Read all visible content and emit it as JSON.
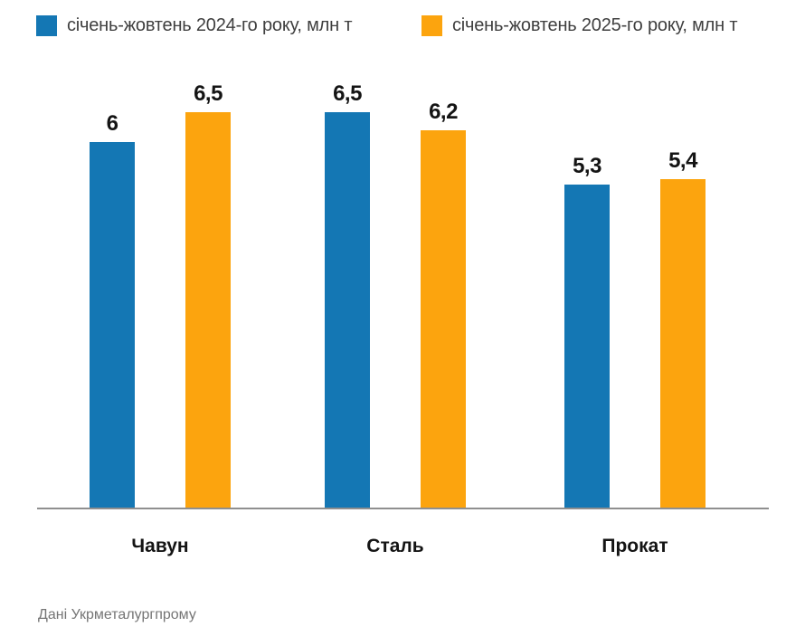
{
  "legend": [
    {
      "label": "січень-жовтень 2024-го року, млн т",
      "color": "#1477B4"
    },
    {
      "label": "січень-жовтень 2025-го року, млн т",
      "color": "#FCA40E"
    }
  ],
  "source": "Дані Укрметалургпрому",
  "chart_data": {
    "type": "bar",
    "categories": [
      "Чавун",
      "Сталь",
      "Прокат"
    ],
    "series": [
      {
        "name": "січень-жовтень 2024-го року, млн т",
        "color": "#1477B4",
        "values": [
          6,
          6.5,
          5.3
        ],
        "value_labels": [
          "6",
          "6,5",
          "5,3"
        ]
      },
      {
        "name": "січень-жовтень 2025-го року, млн т",
        "color": "#FCA40E",
        "values": [
          6.5,
          6.2,
          5.4
        ],
        "value_labels": [
          "6,5",
          "6,2",
          "5,4"
        ]
      }
    ],
    "ylim": [
      0,
      7
    ],
    "grid": false,
    "axis_line_color": "#8f8f8f",
    "legend_position": "top",
    "value_label_decimal": "comma"
  }
}
